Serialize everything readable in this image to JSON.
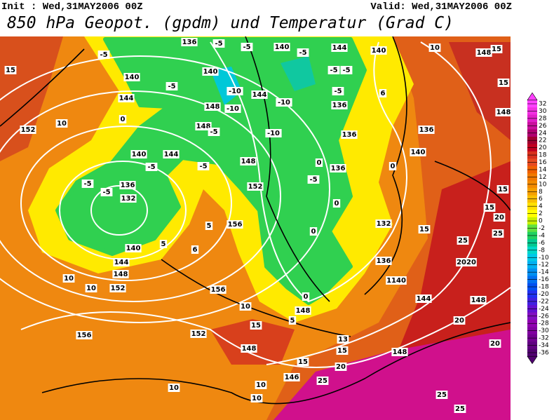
{
  "header": {
    "init": "Init : Wed,31MAY2006 00Z",
    "valid": "Valid: Wed,31MAY2006 00Z",
    "title": "850 hPa Geopot. (gpdm) und Temperatur (Grad C)"
  },
  "colorbar": {
    "ticks": [
      32,
      30,
      28,
      26,
      24,
      22,
      20,
      18,
      16,
      14,
      12,
      10,
      8,
      6,
      4,
      2,
      0,
      -2,
      -4,
      -6,
      -8,
      -10,
      -12,
      -14,
      -16,
      -18,
      -20,
      -22,
      -24,
      -26,
      -28,
      -30,
      -32,
      -34,
      -36
    ],
    "colors": [
      "#ff40ff",
      "#f030e0",
      "#e020c8",
      "#c8109c",
      "#b00070",
      "#a00030",
      "#c00020",
      "#d8301c",
      "#e64a20",
      "#f06000",
      "#f07800",
      "#f28a00",
      "#f5a000",
      "#f8be00",
      "#ffe000",
      "#ffff00",
      "#c8f000",
      "#60e040",
      "#20d060",
      "#00c890",
      "#00d8c8",
      "#00c8e8",
      "#00b0f0",
      "#0090f0",
      "#0070f0",
      "#0050f0",
      "#2030f0",
      "#4020e0",
      "#6010d0",
      "#8010c0",
      "#9000b0",
      "#8000a0",
      "#700090",
      "#600080",
      "#500070"
    ]
  },
  "map": {
    "contour_labels": [
      "136",
      "-5",
      "-5",
      "140",
      "-5",
      "144",
      "140",
      "10",
      "148",
      "15",
      "15",
      "-5",
      "140",
      "-5",
      "-5",
      "15",
      "140",
      "-5",
      "-10",
      "144",
      "-5",
      "6",
      "144",
      "148",
      "-10",
      "-10",
      "136",
      "148",
      "0",
      "10",
      "152",
      "148",
      "-5",
      "-10",
      "136",
      "136",
      "140",
      "144",
      "-5",
      "-5",
      "148",
      "0",
      "136",
      "140",
      "0",
      "-5",
      "136",
      "152",
      "-5",
      "15",
      "-5",
      "132",
      "0",
      "15",
      "156",
      "5",
      "132",
      "15",
      "20",
      "25",
      "140",
      "5",
      "0",
      "6",
      "25",
      "144",
      "136",
      "2020",
      "148",
      "10",
      "1140",
      "10",
      "152",
      "156",
      "144",
      "148",
      "0",
      "10",
      "148",
      "20",
      "5",
      "15",
      "156",
      "152",
      "13",
      "15",
      "148",
      "148",
      "20",
      "15",
      "20",
      "146",
      "25",
      "10",
      "10",
      "10",
      "25",
      "25"
    ]
  }
}
